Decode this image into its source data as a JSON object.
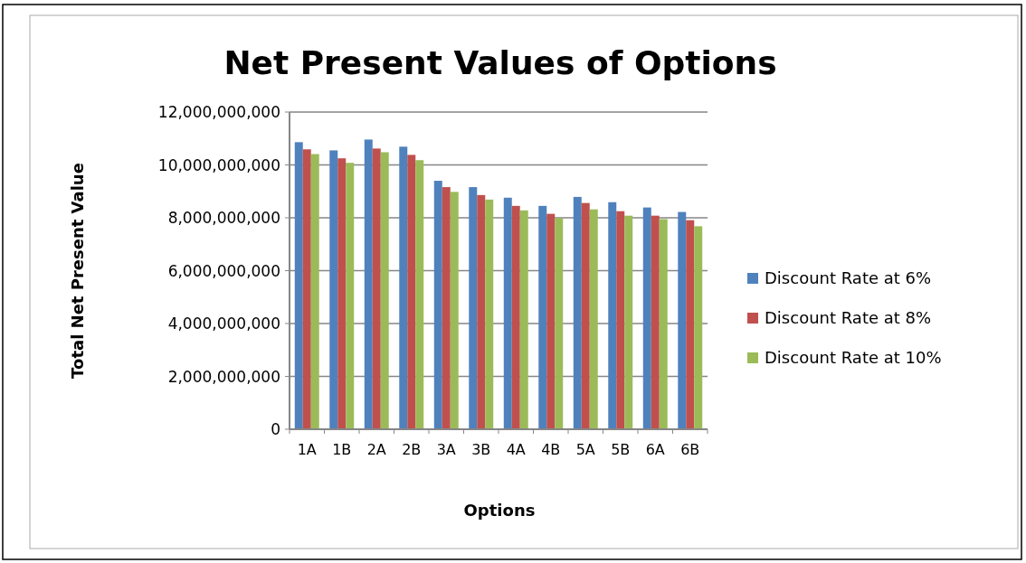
{
  "chart_data": {
    "type": "bar",
    "title": "Net Present Values of Options",
    "xlabel": "Options",
    "ylabel": "Total Net Present Value",
    "categories": [
      "1A",
      "1B",
      "2A",
      "2B",
      "3A",
      "3B",
      "4A",
      "4B",
      "5A",
      "5B",
      "6A",
      "6B"
    ],
    "series": [
      {
        "name": "Discount Rate at 6%",
        "color": "#4f81bd",
        "values": [
          10860000000,
          10550000000,
          10960000000,
          10690000000,
          9400000000,
          9160000000,
          8760000000,
          8450000000,
          8790000000,
          8590000000,
          8390000000,
          8220000000
        ]
      },
      {
        "name": "Discount Rate at 8%",
        "color": "#c0504d",
        "values": [
          10590000000,
          10250000000,
          10620000000,
          10380000000,
          9160000000,
          8860000000,
          8450000000,
          8150000000,
          8560000000,
          8250000000,
          8080000000,
          7910000000
        ]
      },
      {
        "name": "Discount Rate at 10%",
        "color": "#9bbb59",
        "values": [
          10410000000,
          10080000000,
          10480000000,
          10180000000,
          8980000000,
          8690000000,
          8280000000,
          7990000000,
          8320000000,
          8080000000,
          7950000000,
          7680000000
        ]
      }
    ],
    "ylim": [
      0,
      12000000000
    ],
    "yticks": [
      {
        "value": 0,
        "label": "0"
      },
      {
        "value": 2000000000,
        "label": "2,000,000,000"
      },
      {
        "value": 4000000000,
        "label": "4,000,000,000"
      },
      {
        "value": 6000000000,
        "label": "6,000,000,000"
      },
      {
        "value": 8000000000,
        "label": "8,000,000,000"
      },
      {
        "value": 10000000000,
        "label": "10,000,000,000"
      },
      {
        "value": 12000000000,
        "label": "12,000,000,000"
      }
    ],
    "grid": "y",
    "legend": "right"
  }
}
